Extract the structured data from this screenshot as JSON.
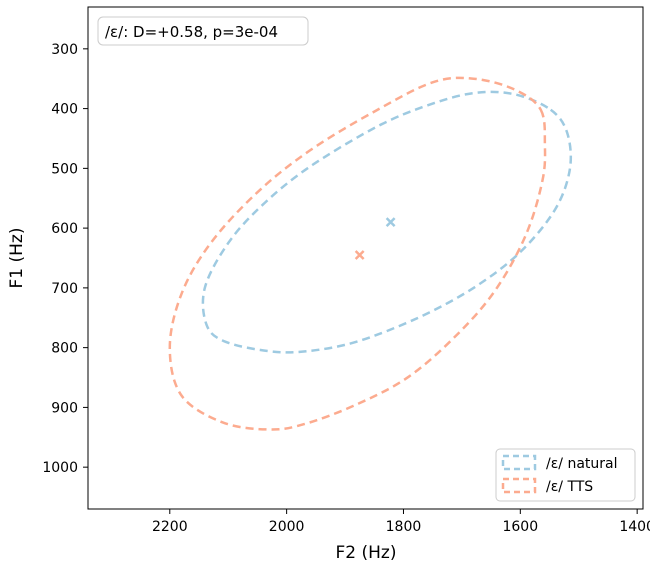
{
  "chart_data": {
    "type": "scatter",
    "annotation": "/ε/: D=+0.58, p=3e-04",
    "xlabel": "F2 (Hz)",
    "ylabel": "F1 (Hz)",
    "xlim": [
      2340,
      1390
    ],
    "ylim": [
      1070,
      230
    ],
    "x_inverted": true,
    "y_inverted": true,
    "xticks": [
      2200,
      2000,
      1800,
      1600,
      1400
    ],
    "yticks": [
      300,
      400,
      500,
      600,
      700,
      800,
      900,
      1000
    ],
    "grid": false,
    "legend_position": "lower-right",
    "series": [
      {
        "name": "/ε/ natural",
        "color": "#9ecae1",
        "mean": {
          "F2": 1822,
          "F1": 590
        },
        "ellipse_outline": [
          {
            "F2": 1548,
            "F1": 402
          },
          {
            "F2": 1520,
            "F1": 440
          },
          {
            "F2": 1515,
            "F1": 500
          },
          {
            "F2": 1540,
            "F1": 568
          },
          {
            "F2": 1600,
            "F1": 640
          },
          {
            "F2": 1680,
            "F1": 700
          },
          {
            "F2": 1775,
            "F1": 750
          },
          {
            "F2": 1880,
            "F1": 790
          },
          {
            "F2": 1965,
            "F1": 806
          },
          {
            "F2": 2030,
            "F1": 806
          },
          {
            "F2": 2105,
            "F1": 790
          },
          {
            "F2": 2137,
            "F1": 762
          },
          {
            "F2": 2140,
            "F1": 700
          },
          {
            "F2": 2100,
            "F1": 625
          },
          {
            "F2": 2040,
            "F1": 560
          },
          {
            "F2": 1960,
            "F1": 497
          },
          {
            "F2": 1845,
            "F1": 430
          },
          {
            "F2": 1760,
            "F1": 395
          },
          {
            "F2": 1680,
            "F1": 374
          },
          {
            "F2": 1610,
            "F1": 376
          }
        ]
      },
      {
        "name": "/ε/ TTS",
        "color": "#fcab8f",
        "mean": {
          "F2": 1875,
          "F1": 645
        },
        "ellipse_outline": [
          {
            "F2": 1565,
            "F1": 402
          },
          {
            "F2": 1558,
            "F1": 460
          },
          {
            "F2": 1562,
            "F1": 520
          },
          {
            "F2": 1590,
            "F1": 610
          },
          {
            "F2": 1640,
            "F1": 700
          },
          {
            "F2": 1705,
            "F1": 775
          },
          {
            "F2": 1790,
            "F1": 848
          },
          {
            "F2": 1880,
            "F1": 895
          },
          {
            "F2": 1970,
            "F1": 928
          },
          {
            "F2": 2030,
            "F1": 937
          },
          {
            "F2": 2110,
            "F1": 925
          },
          {
            "F2": 2180,
            "F1": 880
          },
          {
            "F2": 2200,
            "F1": 800
          },
          {
            "F2": 2180,
            "F1": 710
          },
          {
            "F2": 2130,
            "F1": 625
          },
          {
            "F2": 2050,
            "F1": 540
          },
          {
            "F2": 1960,
            "F1": 470
          },
          {
            "F2": 1850,
            "F1": 405
          },
          {
            "F2": 1750,
            "F1": 356
          },
          {
            "F2": 1680,
            "F1": 350
          },
          {
            "F2": 1610,
            "F1": 368
          }
        ]
      }
    ]
  }
}
